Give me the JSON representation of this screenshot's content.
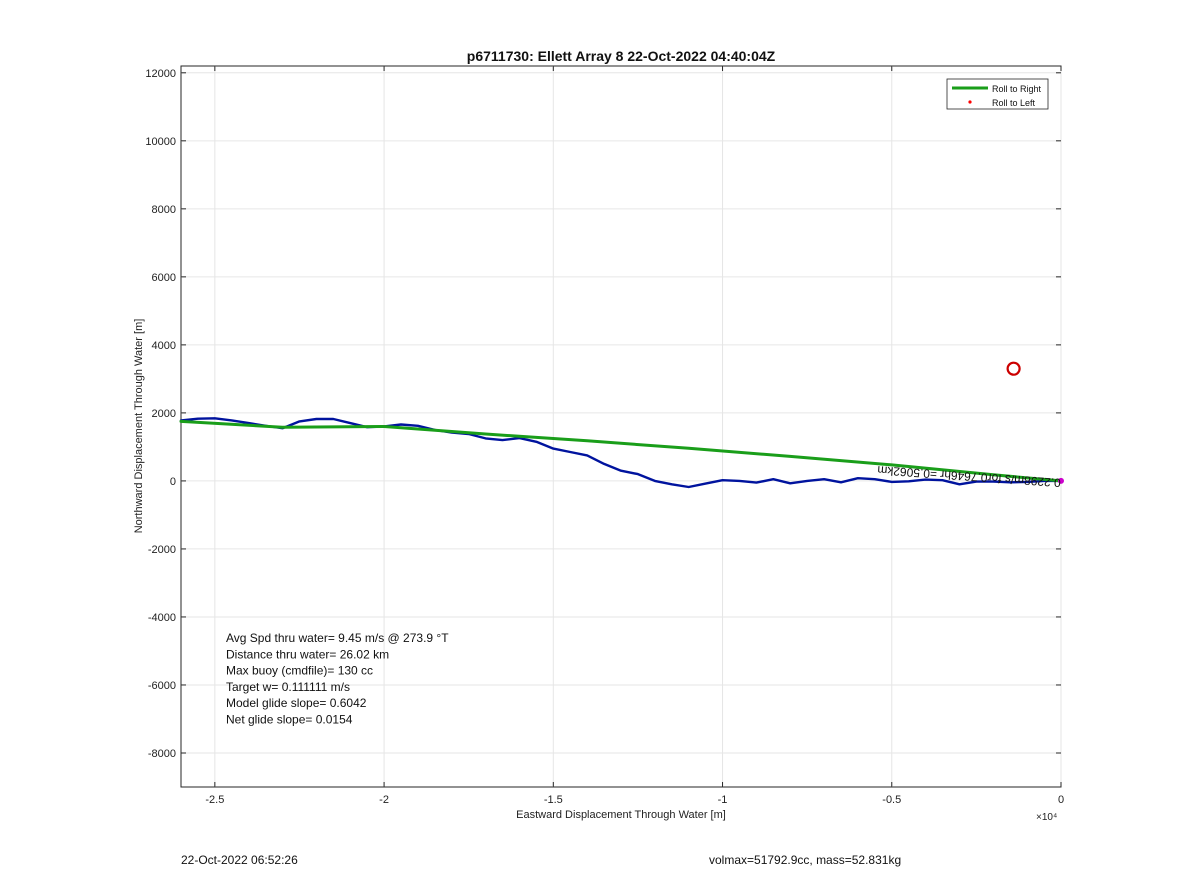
{
  "chart_data": {
    "type": "line",
    "title": "p6711730: Ellett Array 8 22-Oct-2022 04:40:04Z",
    "xlabel": "Eastward Displacement Through Water [m]",
    "ylabel": "Northward Displacement Through Water [m]",
    "x_exponent_label": "×10⁴",
    "xlim": [
      -26000,
      0
    ],
    "ylim": [
      -9000,
      12200
    ],
    "xticks": [
      -25000,
      -20000,
      -15000,
      -10000,
      -5000,
      0
    ],
    "xtick_labels": [
      "-2.5",
      "-2",
      "-1.5",
      "-1",
      "-0.5",
      "0"
    ],
    "yticks": [
      -8000,
      -6000,
      -4000,
      -2000,
      0,
      2000,
      4000,
      6000,
      8000,
      10000,
      12000
    ],
    "ytick_labels": [
      "-8000",
      "-6000",
      "-4000",
      "-2000",
      "0",
      "2000",
      "4000",
      "6000",
      "8000",
      "10000",
      "12000"
    ],
    "grid": true,
    "legend_position": "top-right",
    "legend": [
      {
        "label": "Roll to Right",
        "color": "#1a9e1a",
        "marker": "line"
      },
      {
        "label": "Roll to Left",
        "color": "#ff0000",
        "marker": "dot"
      }
    ],
    "series": [
      {
        "name": "Roll to Right",
        "color": "#1a9e1a",
        "x": [
          -26000,
          -23000,
          -20000,
          -17000,
          -14000,
          -11000,
          -8000,
          -5000,
          -2000,
          0
        ],
        "y": [
          1750,
          1580,
          1600,
          1380,
          1180,
          960,
          720,
          470,
          180,
          0
        ]
      },
      {
        "color": "#00139e",
        "x": [
          -26000,
          -25500,
          -25000,
          -24500,
          -24000,
          -23500,
          -23000,
          -22500,
          -22000,
          -21500,
          -21000,
          -20500,
          -20000,
          -19500,
          -19000,
          -18500,
          -18000,
          -17500,
          -17000,
          -16500,
          -16000,
          -15500,
          -15000,
          -14500,
          -14000,
          -13500,
          -13000,
          -12500,
          -12000,
          -11500,
          -11000,
          -10500,
          -10000,
          -9500,
          -9000,
          -8500,
          -8000,
          -7500,
          -7000,
          -6500,
          -6000,
          -5500,
          -5000,
          -4500,
          -4000,
          -3500,
          -3000,
          -2500,
          -2000,
          -1500,
          -1000,
          -500,
          0
        ],
        "y": [
          1780,
          1830,
          1840,
          1780,
          1700,
          1620,
          1550,
          1750,
          1820,
          1820,
          1700,
          1580,
          1600,
          1660,
          1620,
          1500,
          1420,
          1380,
          1250,
          1200,
          1260,
          1150,
          950,
          850,
          750,
          500,
          300,
          200,
          0,
          -100,
          -180,
          -80,
          20,
          0,
          -50,
          50,
          -70,
          0,
          50,
          -40,
          80,
          50,
          -30,
          -10,
          40,
          20,
          -100,
          -20,
          -20,
          -40,
          -30,
          0,
          0
        ]
      }
    ],
    "markers": [
      {
        "x": -1400,
        "y": 3300,
        "color": "#cc0000",
        "shape": "circle"
      },
      {
        "x": 0,
        "y": 0,
        "color": "#cc00cc",
        "shape": "dot"
      }
    ],
    "annotations": [
      {
        "text": "0.2298m/s for0.7646hr =0.5062km",
        "x": 0,
        "y": 0,
        "rotation_deg": 184
      }
    ],
    "info_box": [
      "Avg Spd thru water=  9.45 m/s @ 273.9 °T",
      "Distance thru water= 26.02 km",
      "Max buoy (cmdfile)= 130 cc",
      "Target w= 0.111111 m/s",
      "Model glide slope= 0.6042",
      "Net glide slope= 0.0154"
    ]
  },
  "footer": {
    "timestamp": "22-Oct-2022 06:52:26",
    "volmax_mass": "volmax=51792.9cc, mass=52.831kg"
  }
}
